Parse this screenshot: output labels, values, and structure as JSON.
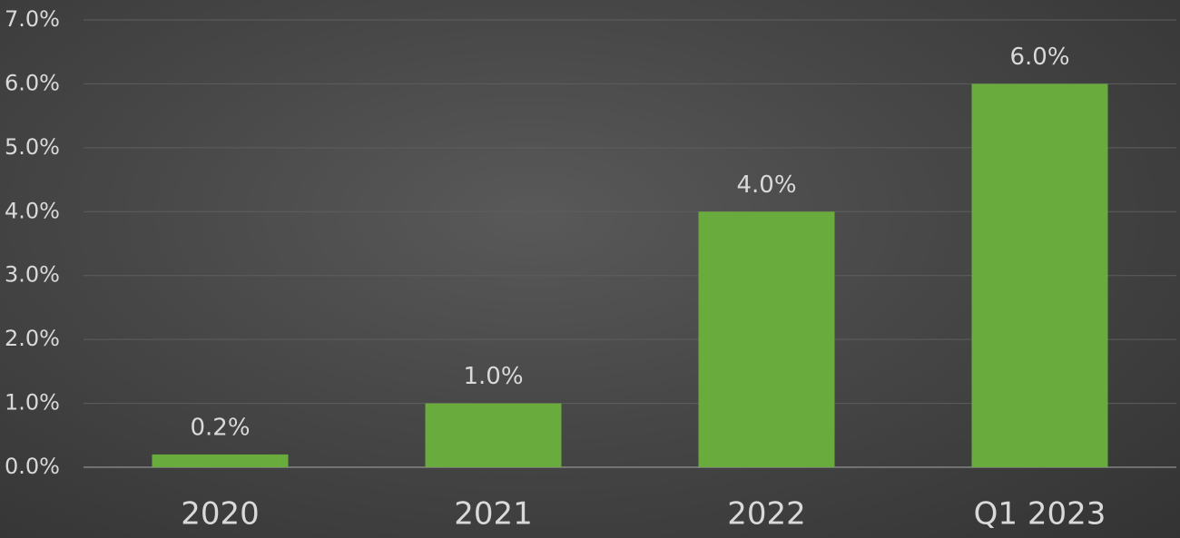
{
  "chart_data": {
    "type": "bar",
    "categories": [
      "2020",
      "2021",
      "2022",
      "Q1 2023"
    ],
    "values": [
      0.2,
      1.0,
      4.0,
      6.0
    ],
    "value_labels": [
      "0.2%",
      "1.0%",
      "4.0%",
      "6.0%"
    ],
    "color": "#6aab3e",
    "ylim": [
      0,
      7
    ],
    "yticks": [
      {
        "value": 0,
        "label": "0.0%"
      },
      {
        "value": 1,
        "label": "1.0%"
      },
      {
        "value": 2,
        "label": "2.0%"
      },
      {
        "value": 3,
        "label": "3.0%"
      },
      {
        "value": 4,
        "label": "4.0%"
      },
      {
        "value": 5,
        "label": "5.0%"
      },
      {
        "value": 6,
        "label": "6.0%"
      },
      {
        "value": 7,
        "label": "7.0%"
      }
    ],
    "grid": true
  }
}
